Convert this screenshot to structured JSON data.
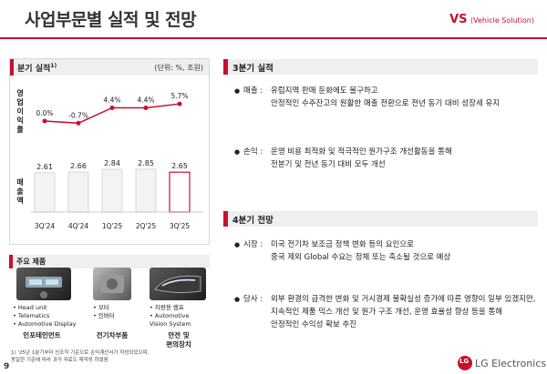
{
  "header": {
    "title": "사업부문별 실적 및 전망",
    "segment": "VS",
    "segment_full": "(Vehicle Solution)",
    "accent_color": "#c8102e"
  },
  "left_panel": {
    "chart_title": "분기 실적",
    "chart_title_note": "1)",
    "unit_label": "(단위: %, 조원)",
    "op_margin_label": "영업이익률",
    "sales_label": "매출액"
  },
  "chart_data": {
    "type": "bar",
    "categories": [
      "3Q'24",
      "4Q'24",
      "1Q'25",
      "2Q'25",
      "3Q'25"
    ],
    "series": [
      {
        "name": "영업이익률",
        "type": "line",
        "values": [
          0.0,
          -0.7,
          4.4,
          4.4,
          5.7
        ],
        "labels": [
          "0.0%",
          "-0.7%",
          "4.4%",
          "4.4%",
          "5.7%"
        ],
        "color": "#c8102e"
      },
      {
        "name": "매출액",
        "type": "bar",
        "values": [
          2.61,
          2.66,
          2.84,
          2.85,
          2.65
        ],
        "labels": [
          "2.61",
          "2.66",
          "2.84",
          "2.85",
          "2.65"
        ]
      }
    ],
    "highlight_index": 4,
    "grid": false
  },
  "products": {
    "title": "주요 제품",
    "items": [
      {
        "category": "인포테인먼트",
        "features": [
          "• Head unit",
          "• Telematics",
          "• Automotive Display"
        ]
      },
      {
        "category": "전기차부품",
        "features": [
          "• 모터",
          "• 인버터"
        ]
      },
      {
        "category_lines": [
          "안전 및",
          "편의장치"
        ],
        "features": [
          "• 차량용 램프",
          "• Automotive",
          "   Vision System"
        ]
      }
    ]
  },
  "footnote": [
    "1) '25년 1분기부터 신조직 기준으로 손익계산서가 작성되었으며,",
    "    동일한 기준에 따라 과거 자료도 재작성 하였음"
  ],
  "page_number": "9",
  "q3": {
    "heading": "3분기 실적",
    "bullets": [
      {
        "label": "매출 :",
        "lines": [
          "유럽지역 판매 둔화에도 불구하고",
          "안정적인 수주잔고의 원활한 매출 전환으로 전년 동기 대비 성장세 유지"
        ]
      },
      {
        "label": "손익 :",
        "lines": [
          "운영 비용 최적화 및 적극적인 원가구조 개선활동을 통해",
          "전분기 및 전년 동기 대비 모두 개선"
        ]
      }
    ]
  },
  "q4": {
    "heading": "4분기 전망",
    "bullets": [
      {
        "label": "시장 :",
        "lines": [
          "미국 전기차 보조금 정책 변화 등의 요인으로",
          "중국 제외 Global 수요는 정체 또는 축소될 것으로 예상"
        ]
      },
      {
        "label": "당사 :",
        "lines": [
          "외부 환경의 급격한 변화 및 거시경제 불확실성 증가에 따른 영향이 일부 있겠지만,",
          "지속적인 제품 믹스 개선 및 원가 구조 개선, 운영 효율성 향상 등을 통해",
          "안정적인 수익성 확보 추진"
        ]
      }
    ]
  },
  "logo": {
    "mark": "LG",
    "text": "LG Electronics"
  }
}
